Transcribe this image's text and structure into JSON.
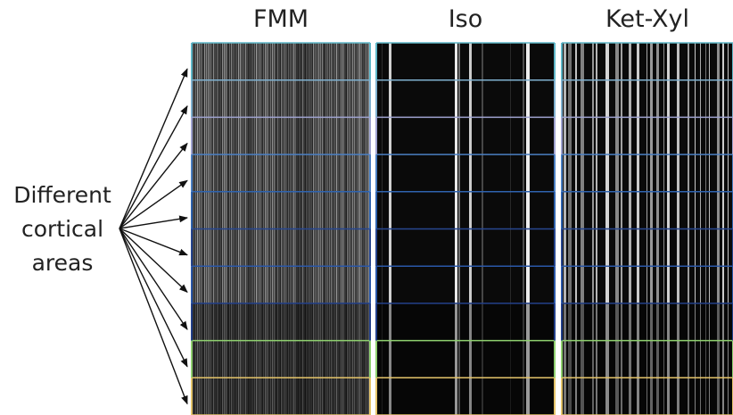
{
  "panels": [
    {
      "title": "FMM"
    },
    {
      "title": "Iso"
    },
    {
      "title": "Ket-Xyl"
    }
  ],
  "side_label": {
    "line1": "Different",
    "line2": "cortical",
    "line3": "areas"
  },
  "colors": {
    "background": "#ffffff",
    "text": "#222222",
    "arrow": "#111111",
    "area_boundaries": [
      "#5fb7c8",
      "#7fb0cf",
      "#9fa3d0",
      "#4b7fc2",
      "#2f63ae",
      "#27468f",
      "#2a57a8",
      "#23408a",
      "#8fd06f",
      "#e4c46a"
    ]
  },
  "area_count": 10
}
